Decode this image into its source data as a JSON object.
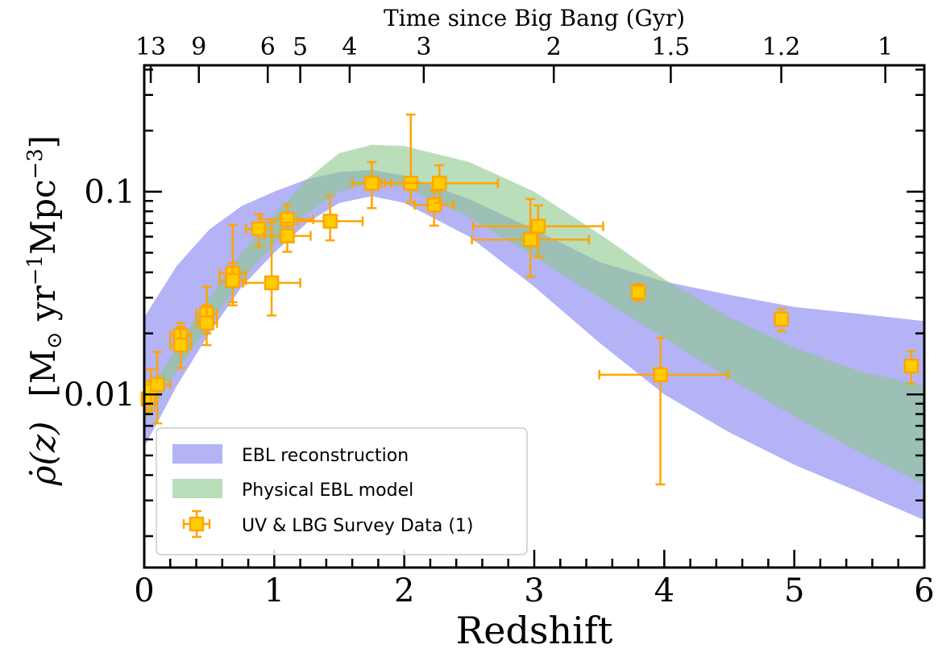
{
  "chart_data": {
    "type": "scatter",
    "xlabel": "Redshift",
    "ylabel": "$\\dot{\\rho}(z)$   [M$_\\odot$ yr$^{-1}$Mpc$^{-3}$]",
    "ylabel_parts": {
      "rho": "ρ̇(z)",
      "units_open": "[M",
      "sun": "⊙",
      "yr": " yr",
      "exp1": "−1",
      "mpc": "Mpc",
      "exp3": "−3",
      "close": "]"
    },
    "top_axis_label": "Time since Big Bang (Gyr)",
    "xlim": [
      0,
      6
    ],
    "ylim": [
      0.0014,
      0.42
    ],
    "yscale": "log",
    "x_ticks": [
      "0",
      "1",
      "2",
      "3",
      "4",
      "5",
      "6"
    ],
    "y_ticks": [
      "0.01",
      "0.1"
    ],
    "top_ticks": [
      {
        "label": "13",
        "z": 0.05
      },
      {
        "label": "9",
        "z": 0.42
      },
      {
        "label": "6",
        "z": 0.95
      },
      {
        "label": "5",
        "z": 1.2
      },
      {
        "label": "4",
        "z": 1.58
      },
      {
        "label": "3",
        "z": 2.15
      },
      {
        "label": "2",
        "z": 3.15
      },
      {
        "label": "1.5",
        "z": 4.05
      },
      {
        "label": "1.2",
        "z": 4.9
      },
      {
        "label": "1",
        "z": 5.7
      }
    ],
    "legend_position": "lower-left",
    "series": [
      {
        "name": "EBL reconstruction",
        "kind": "band",
        "color": "#8080f0",
        "z": [
          0.0,
          0.25,
          0.5,
          0.75,
          1.0,
          1.25,
          1.5,
          1.75,
          2.0,
          2.5,
          3.0,
          3.5,
          4.0,
          4.5,
          5.0,
          5.5,
          6.0
        ],
        "lower": [
          0.0055,
          0.011,
          0.02,
          0.034,
          0.05,
          0.07,
          0.088,
          0.095,
          0.088,
          0.06,
          0.034,
          0.018,
          0.01,
          0.0065,
          0.0045,
          0.0033,
          0.0024
        ],
        "upper": [
          0.024,
          0.043,
          0.065,
          0.085,
          0.1,
          0.115,
          0.125,
          0.128,
          0.12,
          0.092,
          0.065,
          0.045,
          0.036,
          0.031,
          0.027,
          0.025,
          0.023
        ]
      },
      {
        "name": "Physical EBL model",
        "kind": "band",
        "color": "#8cc68c",
        "z": [
          0.0,
          0.25,
          0.5,
          0.75,
          1.0,
          1.25,
          1.5,
          1.75,
          2.0,
          2.5,
          3.0,
          3.5,
          4.0,
          4.5,
          5.0,
          5.5,
          6.0
        ],
        "lower": [
          0.0072,
          0.013,
          0.022,
          0.037,
          0.055,
          0.078,
          0.1,
          0.11,
          0.105,
          0.075,
          0.048,
          0.03,
          0.019,
          0.012,
          0.0078,
          0.0052,
          0.0036
        ],
        "upper": [
          0.0095,
          0.017,
          0.03,
          0.05,
          0.077,
          0.115,
          0.155,
          0.17,
          0.168,
          0.14,
          0.1,
          0.062,
          0.037,
          0.024,
          0.017,
          0.013,
          0.011
        ]
      },
      {
        "name": "UV & LBG Survey Data (1)",
        "kind": "errorbar",
        "color": "#ffa500",
        "face_color": "#ffcc00",
        "points": [
          {
            "x": 0.03,
            "y": 0.0095,
            "xerr": [
              0.03,
              0.03
            ],
            "yerr": [
              0.0015,
              0.002
            ]
          },
          {
            "x": 0.05,
            "y": 0.0108,
            "xerr": [
              0.05,
              0.05
            ],
            "yerr": [
              0.0025,
              0.0025
            ]
          },
          {
            "x": 0.1,
            "y": 0.0112,
            "xerr": [
              0.1,
              0.1
            ],
            "yerr": [
              0.004,
              0.005
            ]
          },
          {
            "x": 0.28,
            "y": 0.0195,
            "xerr": [
              0.08,
              0.08
            ],
            "yerr": [
              0.003,
              0.003
            ]
          },
          {
            "x": 0.28,
            "y": 0.0175,
            "xerr": [
              0.08,
              0.08
            ],
            "yerr": [
              0.004,
              0.004
            ]
          },
          {
            "x": 0.48,
            "y": 0.025,
            "xerr": [
              0.08,
              0.08
            ],
            "yerr": [
              0.005,
              0.009
            ]
          },
          {
            "x": 0.48,
            "y": 0.0225,
            "xerr": [
              0.08,
              0.08
            ],
            "yerr": [
              0.005,
              0.005
            ]
          },
          {
            "x": 0.68,
            "y": 0.0395,
            "xerr": [
              0.1,
              0.1
            ],
            "yerr": [
              0.012,
              0.029
            ]
          },
          {
            "x": 0.68,
            "y": 0.0365,
            "xerr": [
              0.1,
              0.1
            ],
            "yerr": [
              0.008,
              0.008
            ]
          },
          {
            "x": 0.88,
            "y": 0.0655,
            "xerr": [
              0.1,
              0.1
            ],
            "yerr": [
              0.012,
              0.012
            ]
          },
          {
            "x": 0.98,
            "y": 0.0355,
            "xerr": [
              0.22,
              0.22
            ],
            "yerr": [
              0.011,
              0.035
            ]
          },
          {
            "x": 1.1,
            "y": 0.073,
            "xerr": [
              0.2,
              0.2
            ],
            "yerr": [
              0.013,
              0.013
            ]
          },
          {
            "x": 1.1,
            "y": 0.0605,
            "xerr": [
              0.18,
              0.18
            ],
            "yerr": [
              0.01,
              0.01
            ]
          },
          {
            "x": 1.43,
            "y": 0.0715,
            "xerr": [
              0.25,
              0.25
            ],
            "yerr": [
              0.014,
              0.024
            ]
          },
          {
            "x": 1.75,
            "y": 0.11,
            "xerr": [
              0.15,
              0.15
            ],
            "yerr": [
              0.027,
              0.03
            ]
          },
          {
            "x": 2.05,
            "y": 0.11,
            "xerr": [
              0.2,
              0.2
            ],
            "yerr": [
              0.022,
              0.13
            ]
          },
          {
            "x": 2.23,
            "y": 0.086,
            "xerr": [
              0.15,
              0.15
            ],
            "yerr": [
              0.018,
              0.015
            ]
          },
          {
            "x": 2.27,
            "y": 0.11,
            "xerr": [
              0.45,
              0.45
            ],
            "yerr": [
              0.022,
              0.025
            ]
          },
          {
            "x": 2.97,
            "y": 0.058,
            "xerr": [
              0.45,
              0.45
            ],
            "yerr": [
              0.02,
              0.034
            ]
          },
          {
            "x": 3.03,
            "y": 0.0675,
            "xerr": [
              0.5,
              0.5
            ],
            "yerr": [
              0.02,
              0.018
            ]
          },
          {
            "x": 3.8,
            "y": 0.032,
            "xerr": [
              0.03,
              0.03
            ],
            "yerr": [
              0.003,
              0.003
            ]
          },
          {
            "x": 3.97,
            "y": 0.0125,
            "xerr": [
              0.47,
              0.52
            ],
            "yerr": [
              0.0089,
              0.0065
            ]
          },
          {
            "x": 4.9,
            "y": 0.0235,
            "xerr": [
              0.03,
              0.03
            ],
            "yerr": [
              0.003,
              0.003
            ]
          },
          {
            "x": 5.9,
            "y": 0.0138,
            "xerr": [
              0.05,
              0.05
            ],
            "yerr": [
              0.0025,
              0.0025
            ]
          }
        ]
      }
    ]
  }
}
